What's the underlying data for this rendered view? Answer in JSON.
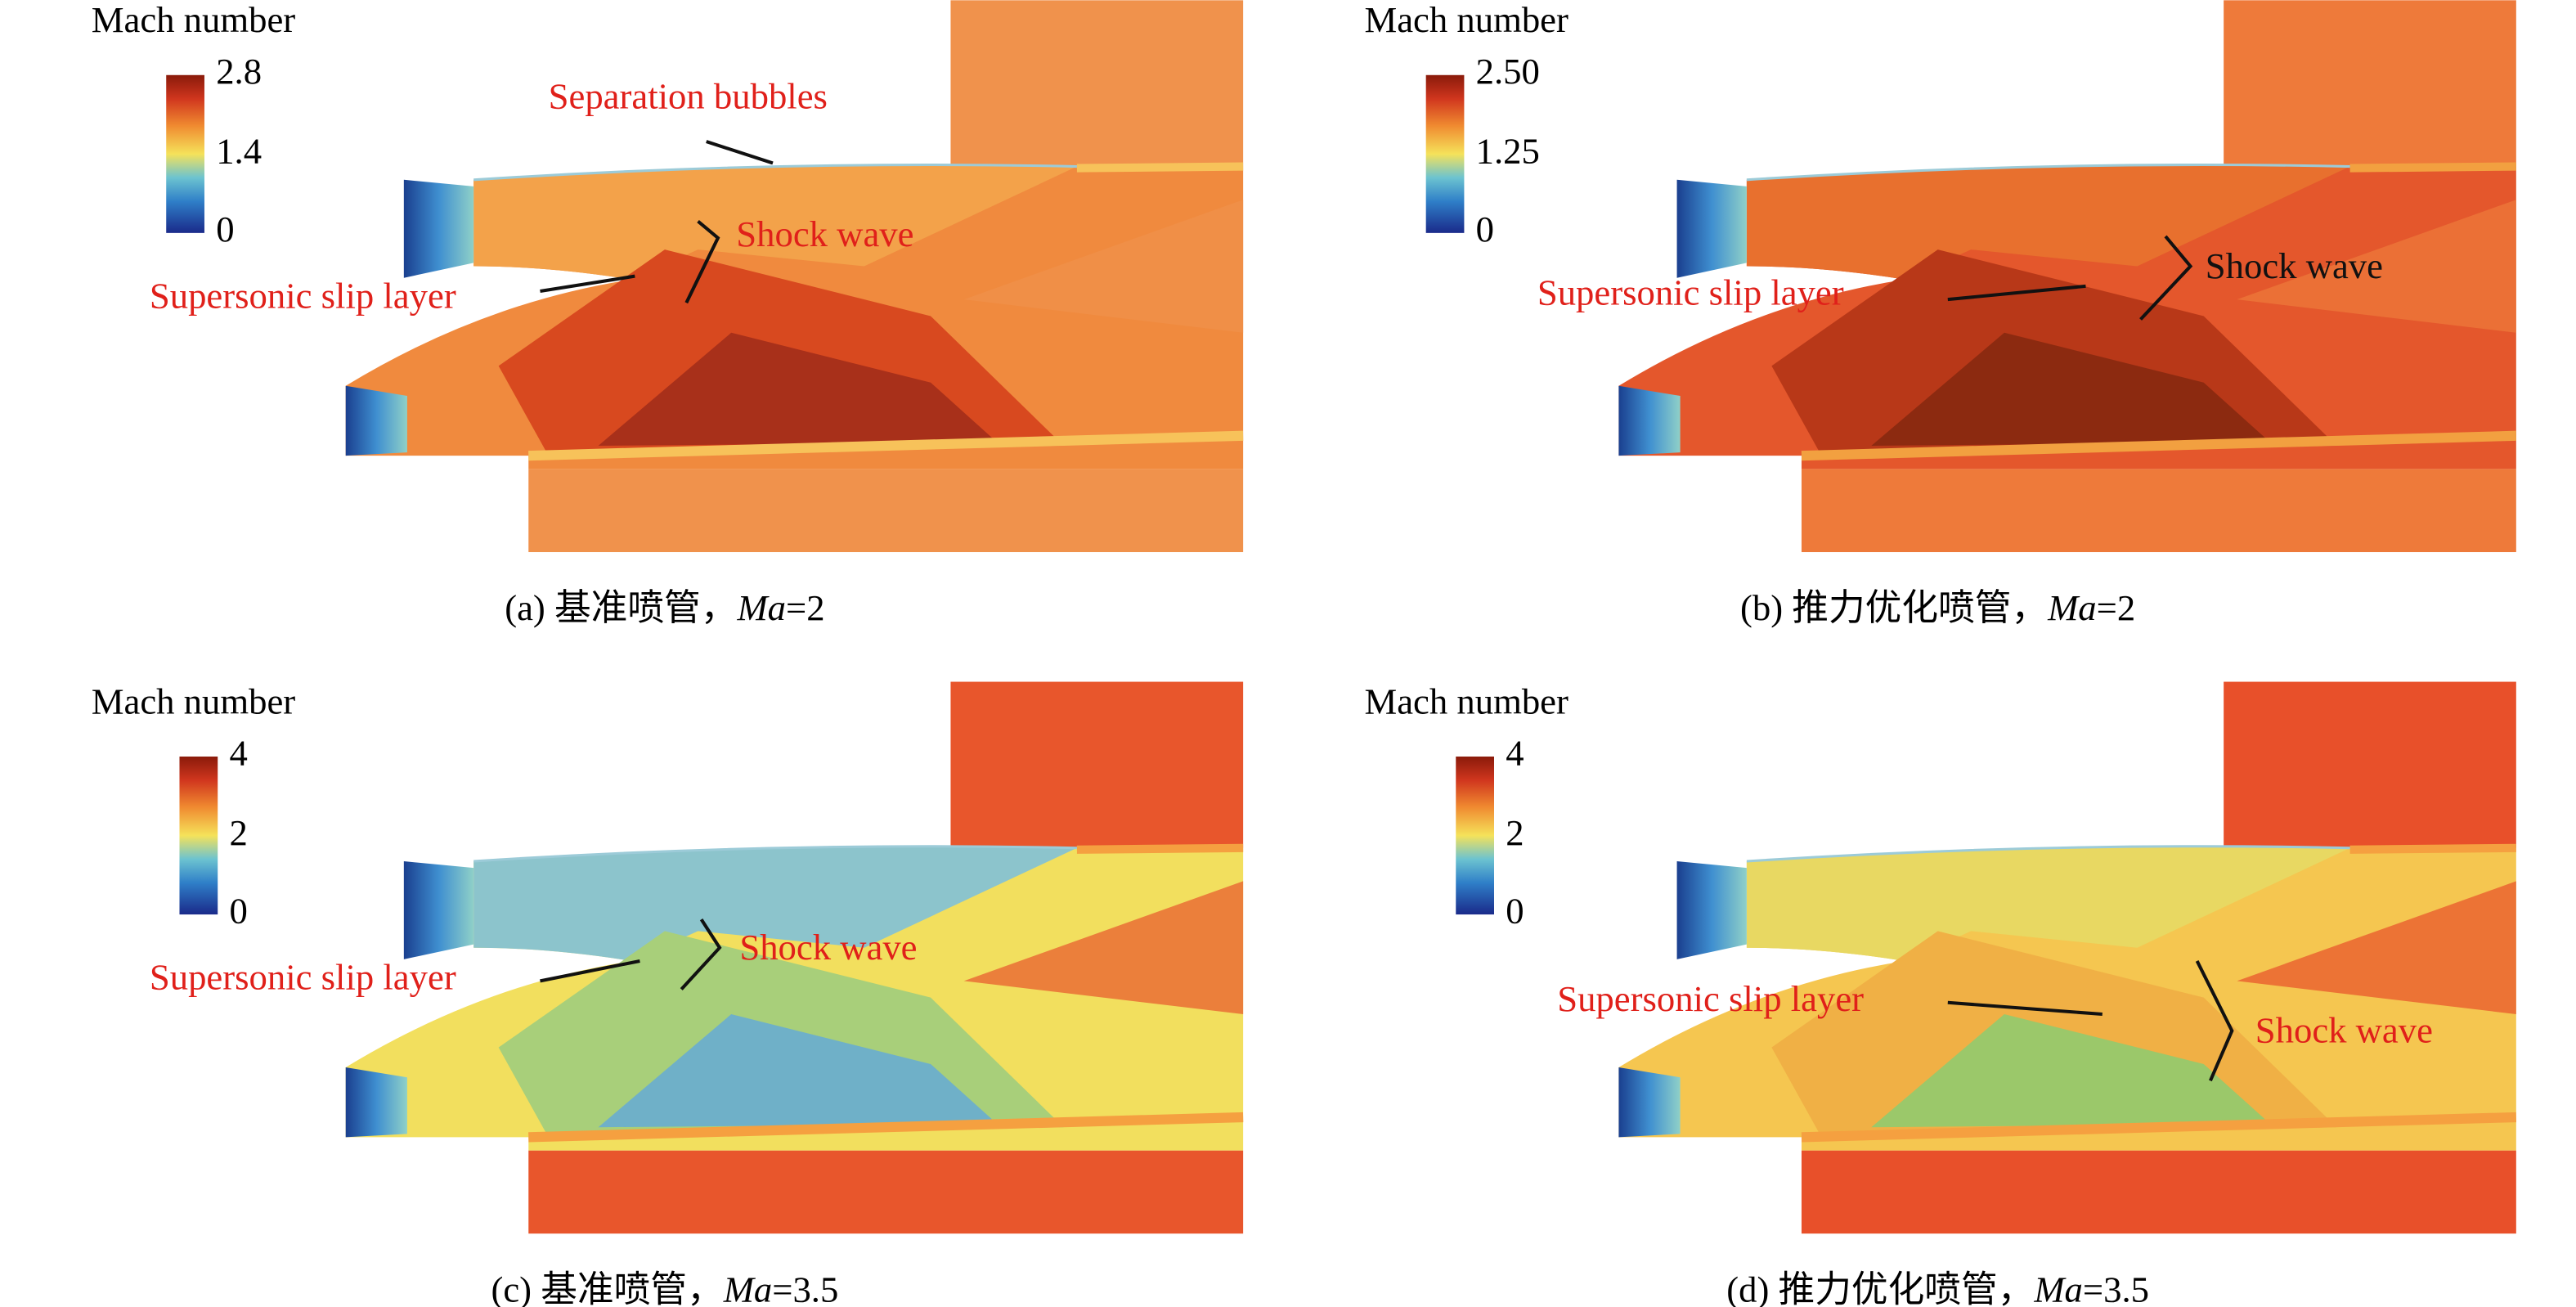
{
  "panels": [
    {
      "colorbar": {
        "title": "Mach number",
        "ticks": [
          "2.8",
          "1.4",
          "0"
        ]
      },
      "annotations": [
        "Separation bubbles",
        "Shock wave",
        "Supersonic slip layer"
      ],
      "caption": {
        "label": "(a) 基准喷管，",
        "italic": "Ma",
        "suffix": "=2"
      }
    },
    {
      "colorbar": {
        "title": "Mach number",
        "ticks": [
          "2.50",
          "1.25",
          "0"
        ]
      },
      "annotations": [
        "Shock wave",
        "Supersonic slip layer"
      ],
      "caption": {
        "label": "(b) 推力优化喷管，",
        "italic": "Ma",
        "suffix": "=2"
      }
    },
    {
      "colorbar": {
        "title": "Mach number",
        "ticks": [
          "4",
          "2",
          "0"
        ]
      },
      "annotations": [
        "Shock wave",
        "Supersonic slip layer"
      ],
      "caption": {
        "label": "(c) 基准喷管，",
        "italic": "Ma",
        "suffix": "=3.5"
      }
    },
    {
      "colorbar": {
        "title": "Mach number",
        "ticks": [
          "4",
          "2",
          "0"
        ]
      },
      "annotations": [
        "Supersonic slip layer",
        "Shock wave"
      ],
      "caption": {
        "label": "(d) 推力优化喷管，",
        "italic": "Ma",
        "suffix": "=3.5"
      }
    }
  ]
}
